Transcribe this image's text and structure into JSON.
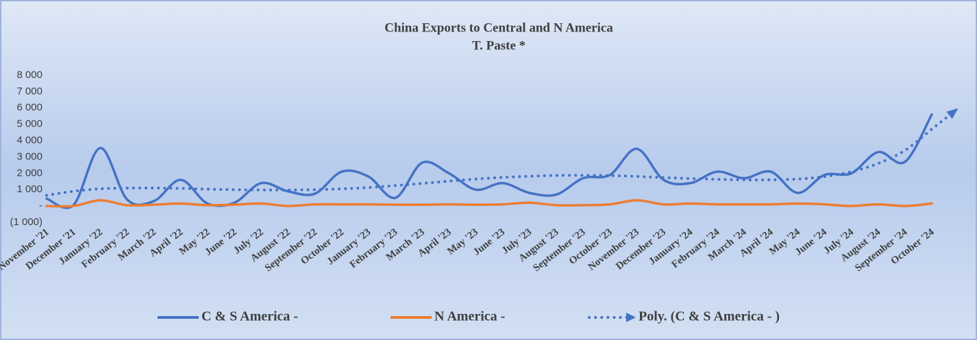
{
  "chart_data": {
    "type": "line",
    "title": "China Exports to Central and N America",
    "subtitle": "T. Paste *",
    "categories": [
      "November '21",
      "December '21",
      "January '22",
      "February '22",
      "March '22",
      "April '22",
      "May '22",
      "June '22",
      "July '22",
      "August '22",
      "September '22",
      "October '22",
      "January '23",
      "February '23",
      "March '23",
      "April '23",
      "May '23",
      "June '23",
      "July '23",
      "August '23",
      "September '23",
      "October '23",
      "November '23",
      "December '23",
      "January '24",
      "February '24",
      "March '24",
      "April '24",
      "May '24",
      "June '24",
      "July '24",
      "August '24",
      "September '24",
      "October '24"
    ],
    "series": [
      {
        "name": "C & S America -",
        "color": "#4472c4",
        "style": "solid",
        "values": [
          450,
          50,
          3550,
          400,
          300,
          1600,
          150,
          200,
          1400,
          900,
          750,
          2100,
          1800,
          500,
          2650,
          2000,
          1000,
          1400,
          800,
          700,
          1700,
          1900,
          3500,
          1600,
          1400,
          2100,
          1700,
          2100,
          800,
          1900,
          2000,
          3300,
          2700,
          5600
        ]
      },
      {
        "name": "N America -",
        "color": "#ed7d31",
        "style": "solid",
        "values": [
          0,
          0,
          350,
          50,
          80,
          150,
          50,
          80,
          150,
          0,
          100,
          100,
          100,
          80,
          80,
          100,
          80,
          100,
          200,
          50,
          50,
          100,
          350,
          100,
          150,
          100,
          100,
          100,
          150,
          100,
          0,
          100,
          0,
          150
        ]
      },
      {
        "name": "Poly. (C & S America -  )",
        "color": "#4472c4",
        "style": "dotted",
        "values": [
          650,
          900,
          1050,
          1100,
          1100,
          1080,
          1030,
          1000,
          980,
          980,
          1000,
          1050,
          1130,
          1250,
          1380,
          1520,
          1650,
          1750,
          1820,
          1870,
          1880,
          1860,
          1810,
          1740,
          1680,
          1630,
          1600,
          1600,
          1650,
          1800,
          2100,
          2600,
          3400,
          4700
        ]
      }
    ],
    "ylim": [
      -1000,
      8000
    ],
    "yticks": [
      {
        "value": -1000,
        "label": "(1 000)"
      },
      {
        "value": 0,
        "label": "-"
      },
      {
        "value": 1000,
        "label": "1 000"
      },
      {
        "value": 2000,
        "label": "2 000"
      },
      {
        "value": 3000,
        "label": "3 000"
      },
      {
        "value": 4000,
        "label": "4 000"
      },
      {
        "value": 5000,
        "label": "5 000"
      },
      {
        "value": 6000,
        "label": "6 000"
      },
      {
        "value": 7000,
        "label": "7 000"
      },
      {
        "value": 8000,
        "label": "8 000"
      }
    ],
    "legend": "bottom"
  }
}
